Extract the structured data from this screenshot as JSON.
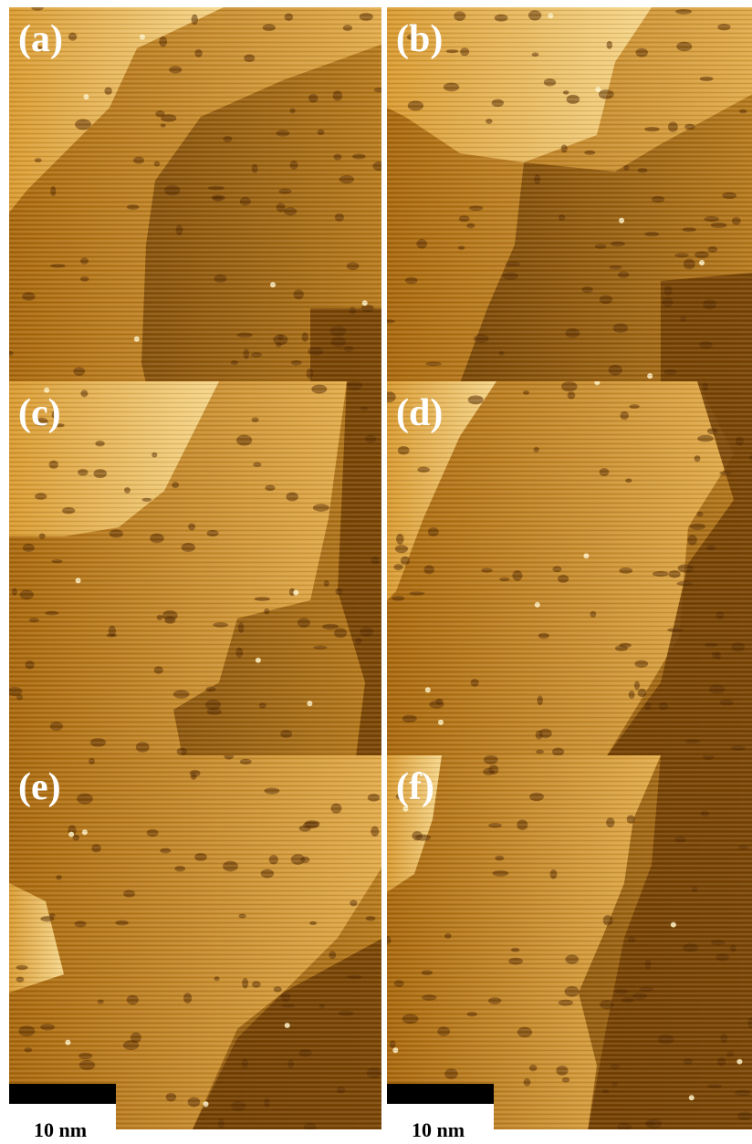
{
  "panels": [
    {
      "label": "(a)"
    },
    {
      "label": "(b)"
    },
    {
      "label": "(c)"
    },
    {
      "label": "(d)"
    },
    {
      "label": "(e)"
    },
    {
      "label": "(f)"
    }
  ],
  "scale_bars": [
    {
      "label": "10 nm"
    },
    {
      "label": "10 nm"
    }
  ]
}
